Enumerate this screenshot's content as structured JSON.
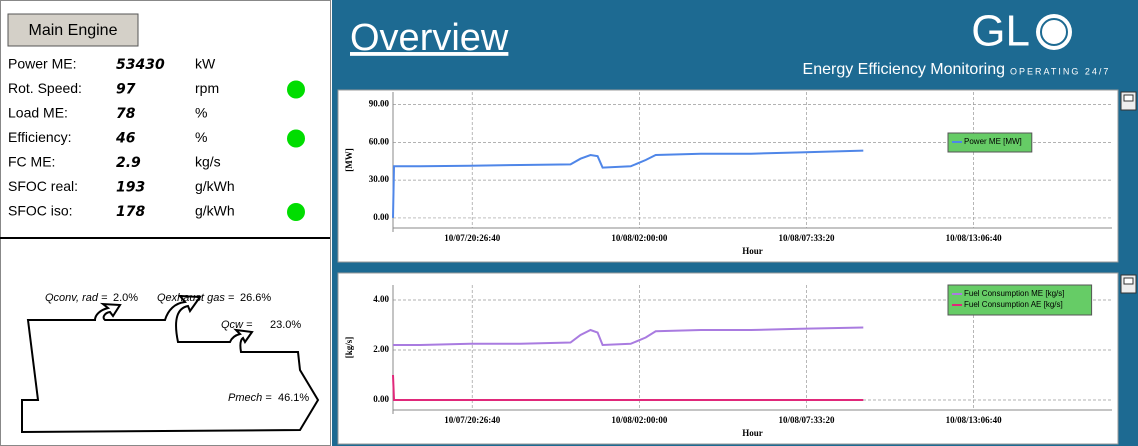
{
  "left_panel": {
    "button": "Main Engine",
    "rows": [
      {
        "label": "Power ME:",
        "value": 53430,
        "unit": "kW"
      },
      {
        "label": "Rot. Speed:",
        "value": 97,
        "unit": "rpm",
        "indicator_color": "#00dd00"
      },
      {
        "label": "Load ME:",
        "value": 78,
        "unit": "%"
      },
      {
        "label": "Efficiency:",
        "value": 46,
        "unit": "%",
        "indicator_color": "#00dd00"
      },
      {
        "label": "FC ME:",
        "value": 2.9,
        "unit": "kg/s"
      },
      {
        "label": "SFOC real:",
        "value": 193,
        "unit": "g/kWh"
      },
      {
        "label": "SFOC iso:",
        "value": 178,
        "unit": "g/kWh",
        "indicator_color": "#00dd00"
      }
    ]
  },
  "energy_flow": [
    {
      "label": "Qconv, rad =",
      "value": "2.0%"
    },
    {
      "label": "Qexhaust gas =",
      "value": "26.6%"
    },
    {
      "label": "Qcw =",
      "value": "23.0%"
    },
    {
      "label": "Pmech =",
      "value": "46.1%"
    }
  ],
  "header": {
    "title": "Overview",
    "brand": "GL",
    "tagline": "Energy Efficiency Monitoring",
    "slogan": "OPERATING 24/7"
  },
  "chart_data": [
    {
      "type": "line",
      "y_label": "[MW]",
      "x_label": "Hour",
      "x": [
        "10/07/17:48:40",
        "10/07/17:50:40",
        "10/07/18:42:40",
        "10/07/20:22:40",
        "10/07/22:02:40",
        "10/07/23:42:40",
        "10/08/00:02:40",
        "10/08/00:22:40",
        "10/08/00:36:40",
        "10/08/00:46:40",
        "10/08/01:42:40",
        "10/08/02:12:40",
        "10/08/02:32:40",
        "10/08/04:02:40",
        "10/08/05:42:40",
        "10/08/07:22:40",
        "10/08/09:26:40"
      ],
      "series": [
        {
          "name": "Power ME [MW]",
          "color": "#4f86e8",
          "values": [
            0,
            41,
            41,
            41.5,
            42,
            42.5,
            47,
            50,
            49,
            40,
            41,
            46,
            50,
            51,
            51,
            52,
            53.5
          ]
        }
      ],
      "xlim": [
        "10/07/17:48:40",
        "10/08/17:42:40"
      ],
      "xticks": [
        "10/07/20:26:40",
        "10/08/02:00:00",
        "10/08/07:33:20",
        "10/08/13:06:40"
      ],
      "ylim": [
        -8,
        100
      ],
      "yticks": [
        {
          "value": 0,
          "label": "0.00"
        },
        {
          "value": 30,
          "label": "30.00"
        },
        {
          "value": 60,
          "label": "60.00"
        },
        {
          "value": 90,
          "label": "90.00"
        }
      ],
      "grid": true,
      "legend": "upper right",
      "legend_color": "#66cc66"
    },
    {
      "type": "line",
      "y_label": "[kg/s]",
      "x_label": "Hour",
      "x": [
        "10/07/17:48:40",
        "10/07/17:50:40",
        "10/07/18:42:40",
        "10/07/20:22:40",
        "10/07/22:02:40",
        "10/07/23:42:40",
        "10/08/00:02:40",
        "10/08/00:22:40",
        "10/08/00:36:40",
        "10/08/00:46:40",
        "10/08/01:42:40",
        "10/08/02:12:40",
        "10/08/02:32:40",
        "10/08/04:02:40",
        "10/08/05:42:40",
        "10/08/07:22:40",
        "10/08/09:26:40"
      ],
      "series": [
        {
          "name": "Fuel Consumption ME [kg/s]",
          "color": "#a97be0",
          "values": [
            2.2,
            2.2,
            2.2,
            2.25,
            2.25,
            2.3,
            2.6,
            2.8,
            2.7,
            2.2,
            2.25,
            2.5,
            2.75,
            2.8,
            2.8,
            2.85,
            2.9
          ]
        },
        {
          "name": "Fuel Consumption AE [kg/s]",
          "color": "#e0287a",
          "values": [
            1.0,
            0,
            0,
            0,
            0,
            0,
            0,
            0,
            0,
            0,
            0,
            0,
            0,
            0,
            0,
            0,
            0
          ]
        }
      ],
      "xlim": [
        "10/07/17:48:40",
        "10/08/17:42:40"
      ],
      "xticks": [
        "10/07/20:26:40",
        "10/08/02:00:00",
        "10/08/07:33:20",
        "10/08/13:06:40"
      ],
      "ylim": [
        -0.4,
        4.6
      ],
      "yticks": [
        {
          "value": 0,
          "label": "0.00"
        },
        {
          "value": 2,
          "label": "2.00"
        },
        {
          "value": 4,
          "label": "4.00"
        }
      ],
      "grid": true,
      "legend": "upper right",
      "legend_color": "#66cc66"
    }
  ]
}
